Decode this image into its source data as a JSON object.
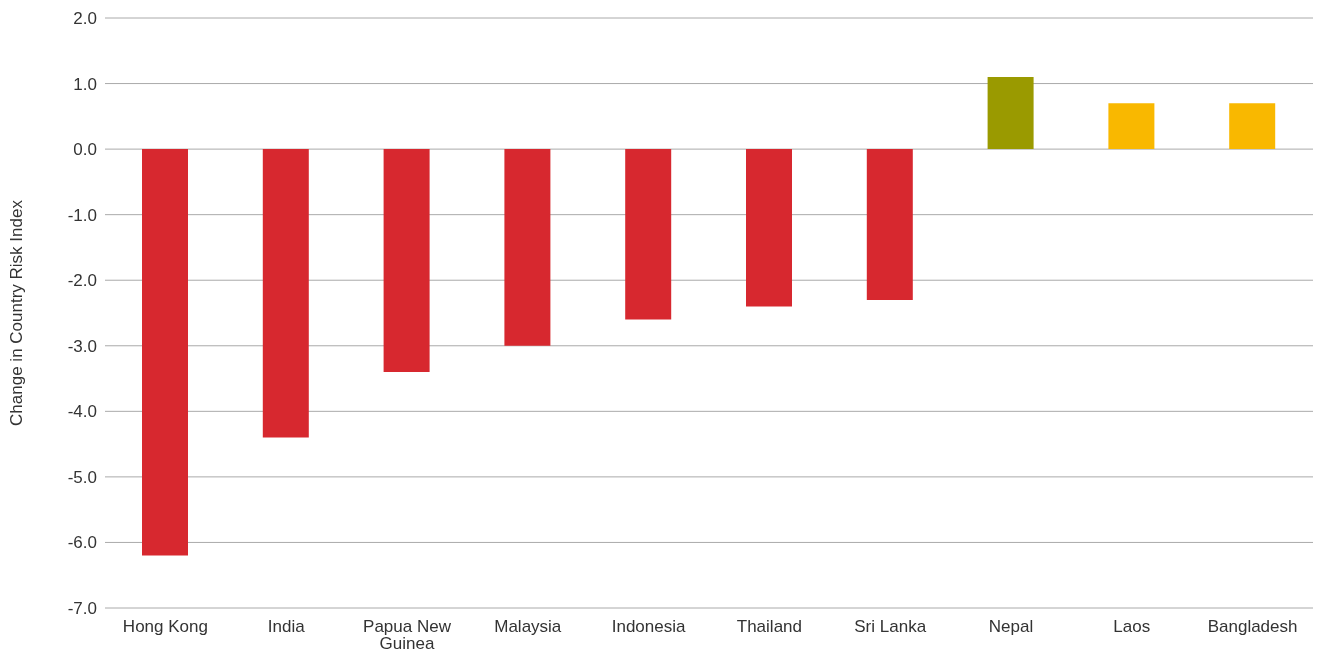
{
  "chart_data": {
    "type": "bar",
    "ylabel": "Change in Country Risk Index",
    "categories": [
      "Hong Kong",
      "India",
      "Papua New Guinea",
      "Malaysia",
      "Indonesia",
      "Thailand",
      "Sri Lanka",
      "Nepal",
      "Laos",
      "Bangladesh"
    ],
    "values": [
      -6.2,
      -4.4,
      -3.4,
      -3.0,
      -2.6,
      -2.4,
      -2.3,
      1.1,
      0.7,
      0.7
    ],
    "colors": [
      "#d7282f",
      "#d7282f",
      "#d7282f",
      "#d7282f",
      "#d7282f",
      "#d7282f",
      "#d7282f",
      "#9a9a00",
      "#f9b800",
      "#f9b800"
    ],
    "ylim": [
      -7,
      2
    ],
    "yticks": [
      {
        "value": 2,
        "label": "2.0"
      },
      {
        "value": 1,
        "label": "1.0"
      },
      {
        "value": 0,
        "label": "0.0"
      },
      {
        "value": -1,
        "label": "-1.0"
      },
      {
        "value": -2,
        "label": "-2.0"
      },
      {
        "value": -3,
        "label": "-3.0"
      },
      {
        "value": -4,
        "label": "-4.0"
      },
      {
        "value": -5,
        "label": "-5.0"
      },
      {
        "value": -6,
        "label": "-6.0"
      },
      {
        "value": -7,
        "label": "-7.0"
      }
    ],
    "grid": "y",
    "legend": false
  }
}
